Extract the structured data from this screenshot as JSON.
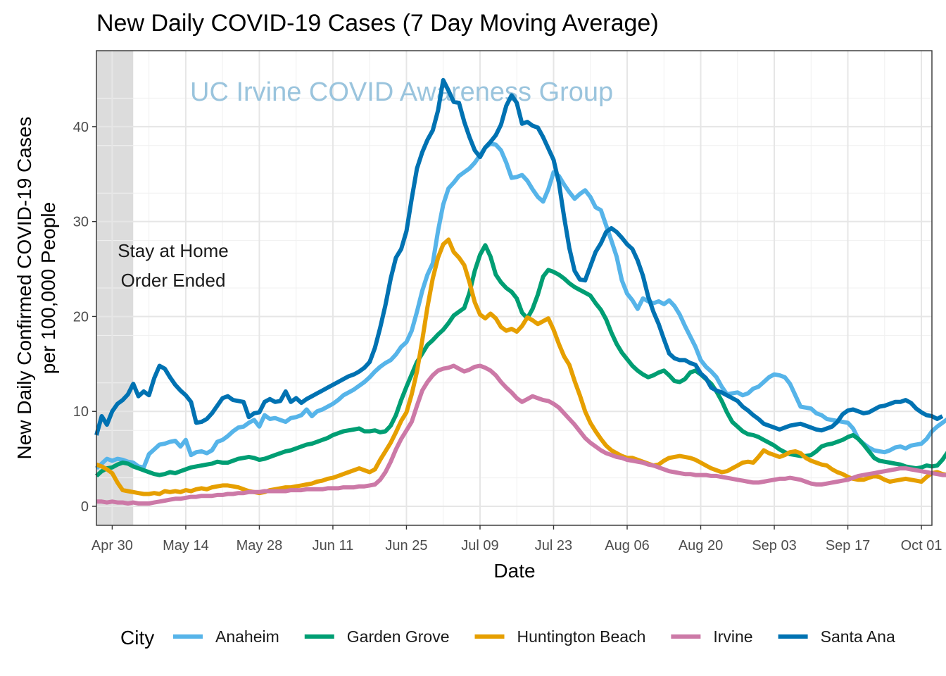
{
  "chart_data": {
    "type": "line",
    "title": "New Daily COVID-19 Cases (7 Day Moving Average)",
    "xlabel": "Date",
    "ylabel_lines": [
      "New Daily Confirmed COVID-19 Cases",
      "per 100,000 People"
    ],
    "x_start": "2020-04-27",
    "x_end": "2020-09-30",
    "xlim": [
      "2020-04-27",
      "2020-10-03"
    ],
    "ylim": [
      -2,
      48
    ],
    "x_ticks": [
      {
        "date": "2020-04-30",
        "label": "Apr 30"
      },
      {
        "date": "2020-05-14",
        "label": "May 14"
      },
      {
        "date": "2020-05-28",
        "label": "May 28"
      },
      {
        "date": "2020-06-11",
        "label": "Jun 11"
      },
      {
        "date": "2020-06-25",
        "label": "Jun 25"
      },
      {
        "date": "2020-07-09",
        "label": "Jul 09"
      },
      {
        "date": "2020-07-23",
        "label": "Jul 23"
      },
      {
        "date": "2020-08-06",
        "label": "Aug 06"
      },
      {
        "date": "2020-08-20",
        "label": "Aug 20"
      },
      {
        "date": "2020-09-03",
        "label": "Sep 03"
      },
      {
        "date": "2020-09-17",
        "label": "Sep 17"
      },
      {
        "date": "2020-10-01",
        "label": "Oct 01"
      }
    ],
    "y_ticks": [
      0,
      10,
      20,
      30,
      40
    ],
    "grid": true,
    "shaded_region": {
      "from": "2020-04-27",
      "to": "2020-05-04",
      "color": "#dcdcdc"
    },
    "annotation": [
      "Stay at Home",
      "Order Ended"
    ],
    "watermark": "UC Irvine COVID Awareness Group",
    "legend": {
      "title": "City",
      "position": "bottom"
    },
    "series": [
      {
        "name": "Anaheim",
        "color": "#56b4e9",
        "values": [
          4,
          4.5,
          5,
          4.8,
          5,
          4.9,
          4.7,
          4.6,
          4.2,
          4.1,
          5.5,
          6,
          6.5,
          6.6,
          6.8,
          6.9,
          6.3,
          7,
          5.4,
          5.7,
          5.8,
          5.6,
          5.9,
          6.8,
          7,
          7.4,
          7.9,
          8.3,
          8.4,
          8.8,
          9.1,
          8.4,
          9.6,
          9.2,
          9.3,
          9.1,
          8.9,
          9.3,
          9.4,
          9.6,
          10.2,
          9.5,
          10,
          10.2,
          10.5,
          10.8,
          11.2,
          11.7,
          12,
          12.3,
          12.7,
          13.1,
          13.6,
          14.2,
          14.7,
          15.1,
          15.4,
          16,
          16.8,
          17.3,
          18.5,
          20.5,
          22.7,
          24.4,
          25.6,
          29,
          31.8,
          33.5,
          34.1,
          34.8,
          35.2,
          35.6,
          36.2,
          37,
          37.8,
          38.2,
          38.1,
          37.5,
          36.2,
          34.6,
          34.7,
          34.9,
          34.3,
          33.4,
          32.6,
          32.1,
          33.4,
          35.2,
          34.8,
          33.9,
          33.1,
          32.4,
          32.9,
          33.3,
          32.6,
          31.5,
          31.2,
          29.6,
          28,
          26.3,
          23.8,
          22.4,
          21.7,
          20.8,
          21.9,
          21.6,
          21.4,
          21.6,
          21.3,
          21.7,
          21.1,
          20.2,
          19,
          17.9,
          16.8,
          15.4,
          14.7,
          14.2,
          13.6,
          12.6,
          11.8,
          11.9,
          12,
          11.7,
          11.9,
          12.4,
          12.6,
          13.1,
          13.6,
          13.9,
          13.8,
          13.6,
          12.9,
          11.7,
          10.5,
          10.4,
          10.3,
          9.8,
          9.6,
          9.2,
          9.1,
          9,
          8.9,
          8.8,
          8.2,
          7.1,
          6.6,
          6.2,
          5.9,
          5.8,
          5.7,
          5.9,
          6.2,
          6.3,
          6.1,
          6.4,
          6.5,
          6.6,
          7.1,
          7.9,
          8.4,
          8.8,
          9.2,
          9.4,
          9.5,
          9.4,
          9.3,
          9.2,
          8.9
        ]
      },
      {
        "name": "Garden Grove",
        "color": "#009e73",
        "values": [
          3.2,
          3.7,
          4,
          4.1,
          4.4,
          4.6,
          4.5,
          4.2,
          4,
          3.8,
          3.6,
          3.4,
          3.3,
          3.4,
          3.6,
          3.5,
          3.7,
          3.9,
          4.1,
          4.2,
          4.3,
          4.4,
          4.5,
          4.7,
          4.6,
          4.6,
          4.8,
          5,
          5.1,
          5.2,
          5.1,
          4.9,
          5,
          5.2,
          5.4,
          5.6,
          5.8,
          5.9,
          6.1,
          6.3,
          6.5,
          6.6,
          6.8,
          7,
          7.2,
          7.5,
          7.7,
          7.9,
          8,
          8.1,
          8.2,
          7.9,
          7.9,
          8,
          7.8,
          7.9,
          8.5,
          9.6,
          11.2,
          12.6,
          13.9,
          15.2,
          16.1,
          17,
          17.5,
          18.1,
          18.6,
          19.3,
          20.1,
          20.5,
          20.9,
          22.5,
          24.8,
          26.5,
          27.5,
          26.3,
          24.4,
          23.6,
          23,
          22.6,
          21.9,
          20.4,
          19.8,
          20.8,
          22.3,
          24.2,
          24.9,
          24.7,
          24.4,
          24,
          23.5,
          23.1,
          22.8,
          22.5,
          22.2,
          21.4,
          20.7,
          19.7,
          18.3,
          17.1,
          16.2,
          15.5,
          14.8,
          14.3,
          13.9,
          13.6,
          13.8,
          14.1,
          14.3,
          13.8,
          13.2,
          13.1,
          13.4,
          14.1,
          14.3,
          13.9,
          13.4,
          12.9,
          12.1,
          11.1,
          9.9,
          8.9,
          8.4,
          7.9,
          7.6,
          7.5,
          7.3,
          7,
          6.7,
          6.4,
          6,
          5.7,
          5.5,
          5.4,
          5.3,
          5.3,
          5.4,
          5.8,
          6.3,
          6.5,
          6.6,
          6.8,
          7,
          7.3,
          7.5,
          7.1,
          6.5,
          5.8,
          5.1,
          4.8,
          4.7,
          4.6,
          4.5,
          4.4,
          4.2,
          4.1,
          4,
          4.1,
          4.3,
          4.2,
          4.3,
          4.9,
          5.7,
          6.5,
          6.8,
          6.9,
          7.1,
          7.2,
          7,
          6.8,
          6.6,
          6.5
        ]
      },
      {
        "name": "Huntington Beach",
        "color": "#e69f00",
        "values": [
          4.4,
          4.2,
          3.9,
          3.5,
          2.5,
          1.7,
          1.6,
          1.5,
          1.4,
          1.3,
          1.3,
          1.4,
          1.3,
          1.6,
          1.5,
          1.6,
          1.5,
          1.7,
          1.6,
          1.8,
          1.9,
          1.8,
          2,
          2.1,
          2.2,
          2.2,
          2.1,
          2,
          1.8,
          1.6,
          1.5,
          1.4,
          1.5,
          1.7,
          1.8,
          1.9,
          2,
          2,
          2.1,
          2.2,
          2.3,
          2.4,
          2.6,
          2.7,
          2.9,
          3,
          3.2,
          3.4,
          3.6,
          3.8,
          4,
          3.8,
          3.6,
          3.9,
          4.9,
          5.8,
          6.7,
          7.8,
          9,
          9.9,
          11.8,
          14.2,
          17.5,
          21,
          24,
          26.2,
          27.6,
          28.1,
          26.8,
          26.2,
          25.4,
          23.6,
          21.5,
          20.2,
          19.8,
          20.3,
          19.8,
          18.9,
          18.5,
          18.7,
          18.4,
          19,
          19.9,
          19.6,
          19.2,
          19.5,
          19.8,
          18.6,
          17.1,
          15.8,
          14.9,
          13.2,
          11.7,
          10,
          8.8,
          7.9,
          7.1,
          6.4,
          5.9,
          5.6,
          5.3,
          5.1,
          5.1,
          4.9,
          4.7,
          4.5,
          4.3,
          4.4,
          4.8,
          5.1,
          5.2,
          5.3,
          5.2,
          5.1,
          4.9,
          4.6,
          4.3,
          4,
          3.8,
          3.6,
          3.7,
          4,
          4.3,
          4.6,
          4.7,
          4.6,
          5.2,
          5.9,
          5.6,
          5.4,
          5.2,
          5.4,
          5.7,
          5.8,
          5.6,
          5.1,
          4.8,
          4.6,
          4.4,
          4.3,
          3.9,
          3.6,
          3.4,
          3.1,
          2.9,
          2.8,
          2.8,
          3,
          3.2,
          3.1,
          2.8,
          2.6,
          2.7,
          2.8,
          2.9,
          2.8,
          2.7,
          2.6,
          3.1,
          3.5,
          3.6,
          3.4,
          3.3,
          3.2,
          3.1,
          3.1,
          3,
          2.9,
          2.9,
          2.8,
          2.6,
          2.4
        ]
      },
      {
        "name": "Irvine",
        "color": "#cc79a7",
        "values": [
          0.5,
          0.5,
          0.4,
          0.5,
          0.4,
          0.4,
          0.3,
          0.4,
          0.3,
          0.3,
          0.3,
          0.4,
          0.5,
          0.6,
          0.7,
          0.8,
          0.8,
          0.9,
          1,
          1,
          1.1,
          1.1,
          1.1,
          1.2,
          1.2,
          1.3,
          1.3,
          1.4,
          1.4,
          1.5,
          1.5,
          1.5,
          1.6,
          1.6,
          1.6,
          1.6,
          1.6,
          1.7,
          1.7,
          1.7,
          1.8,
          1.8,
          1.8,
          1.8,
          1.9,
          1.9,
          1.9,
          2,
          2,
          2,
          2.1,
          2.1,
          2.2,
          2.3,
          2.8,
          3.6,
          4.7,
          6,
          7.1,
          8,
          8.9,
          10.6,
          12.2,
          13.1,
          13.8,
          14.3,
          14.5,
          14.6,
          14.8,
          14.5,
          14.2,
          14.4,
          14.7,
          14.8,
          14.6,
          14.3,
          13.8,
          13.1,
          12.5,
          12,
          11.4,
          11,
          11.3,
          11.6,
          11.4,
          11.2,
          11.1,
          10.8,
          10.4,
          9.8,
          9.2,
          8.6,
          7.9,
          7.2,
          6.7,
          6.3,
          5.9,
          5.6,
          5.4,
          5.2,
          5.1,
          4.9,
          4.8,
          4.7,
          4.6,
          4.4,
          4.3,
          4.1,
          3.9,
          3.7,
          3.6,
          3.5,
          3.4,
          3.4,
          3.3,
          3.3,
          3.3,
          3.2,
          3.2,
          3.1,
          3,
          2.9,
          2.8,
          2.7,
          2.6,
          2.5,
          2.5,
          2.6,
          2.7,
          2.8,
          2.9,
          2.9,
          3,
          2.9,
          2.8,
          2.6,
          2.4,
          2.3,
          2.3,
          2.4,
          2.5,
          2.6,
          2.7,
          2.8,
          3,
          3.2,
          3.3,
          3.4,
          3.5,
          3.6,
          3.7,
          3.8,
          3.9,
          4,
          4,
          3.9,
          3.8,
          3.7,
          3.6,
          3.5,
          3.4,
          3.3,
          3.3,
          3.2,
          3.2,
          3.1,
          3.1,
          3,
          3,
          3,
          3,
          3,
          3,
          3
        ]
      },
      {
        "name": "Santa Ana",
        "color": "#0072b2",
        "values": [
          7.5,
          9.5,
          8.6,
          10,
          10.8,
          11.2,
          11.8,
          12.9,
          11.6,
          12.1,
          11.7,
          13.5,
          14.8,
          14.5,
          13.6,
          12.8,
          12.2,
          11.7,
          11,
          8.8,
          8.9,
          9.2,
          9.8,
          10.6,
          11.4,
          11.6,
          11.2,
          11.1,
          11,
          9.4,
          9.8,
          9.9,
          11,
          11.3,
          11,
          11.1,
          12.1,
          11,
          11.4,
          10.9,
          11.3,
          11.6,
          11.9,
          12.2,
          12.5,
          12.8,
          13.1,
          13.4,
          13.7,
          13.9,
          14.2,
          14.6,
          15.2,
          16.7,
          18.8,
          21.2,
          24,
          26.2,
          27.1,
          29,
          32.4,
          35.6,
          37.3,
          38.6,
          39.6,
          41.7,
          44.9,
          43.8,
          42.6,
          42.5,
          40.5,
          38.9,
          37.5,
          36.8,
          37.8,
          38.4,
          39.1,
          40.2,
          42.2,
          43.3,
          42.5,
          40.3,
          40.5,
          40.1,
          39.9,
          38.9,
          37.7,
          36.5,
          34.1,
          30.5,
          27.2,
          24.8,
          23.9,
          23.8,
          25.3,
          26.8,
          27.7,
          28.9,
          29.3,
          28.9,
          28.3,
          27.6,
          27.1,
          25.9,
          24.3,
          22.1,
          20.5,
          19.2,
          17.6,
          16.1,
          15.6,
          15.4,
          15.4,
          15.1,
          14.9,
          14,
          13.5,
          12.5,
          12.2,
          12,
          11.7,
          11.4,
          11.1,
          10.5,
          10.1,
          9.6,
          9.2,
          8.7,
          8.5,
          8.3,
          8.1,
          8.3,
          8.5,
          8.6,
          8.7,
          8.5,
          8.3,
          8.1,
          8,
          8.2,
          8.4,
          8.9,
          9.7,
          10.1,
          10.2,
          10,
          9.8,
          9.9,
          10.2,
          10.5,
          10.6,
          10.8,
          11,
          11,
          11.2,
          10.9,
          10.3,
          9.9,
          9.6,
          9.5,
          9.2,
          9.5
        ]
      }
    ]
  }
}
